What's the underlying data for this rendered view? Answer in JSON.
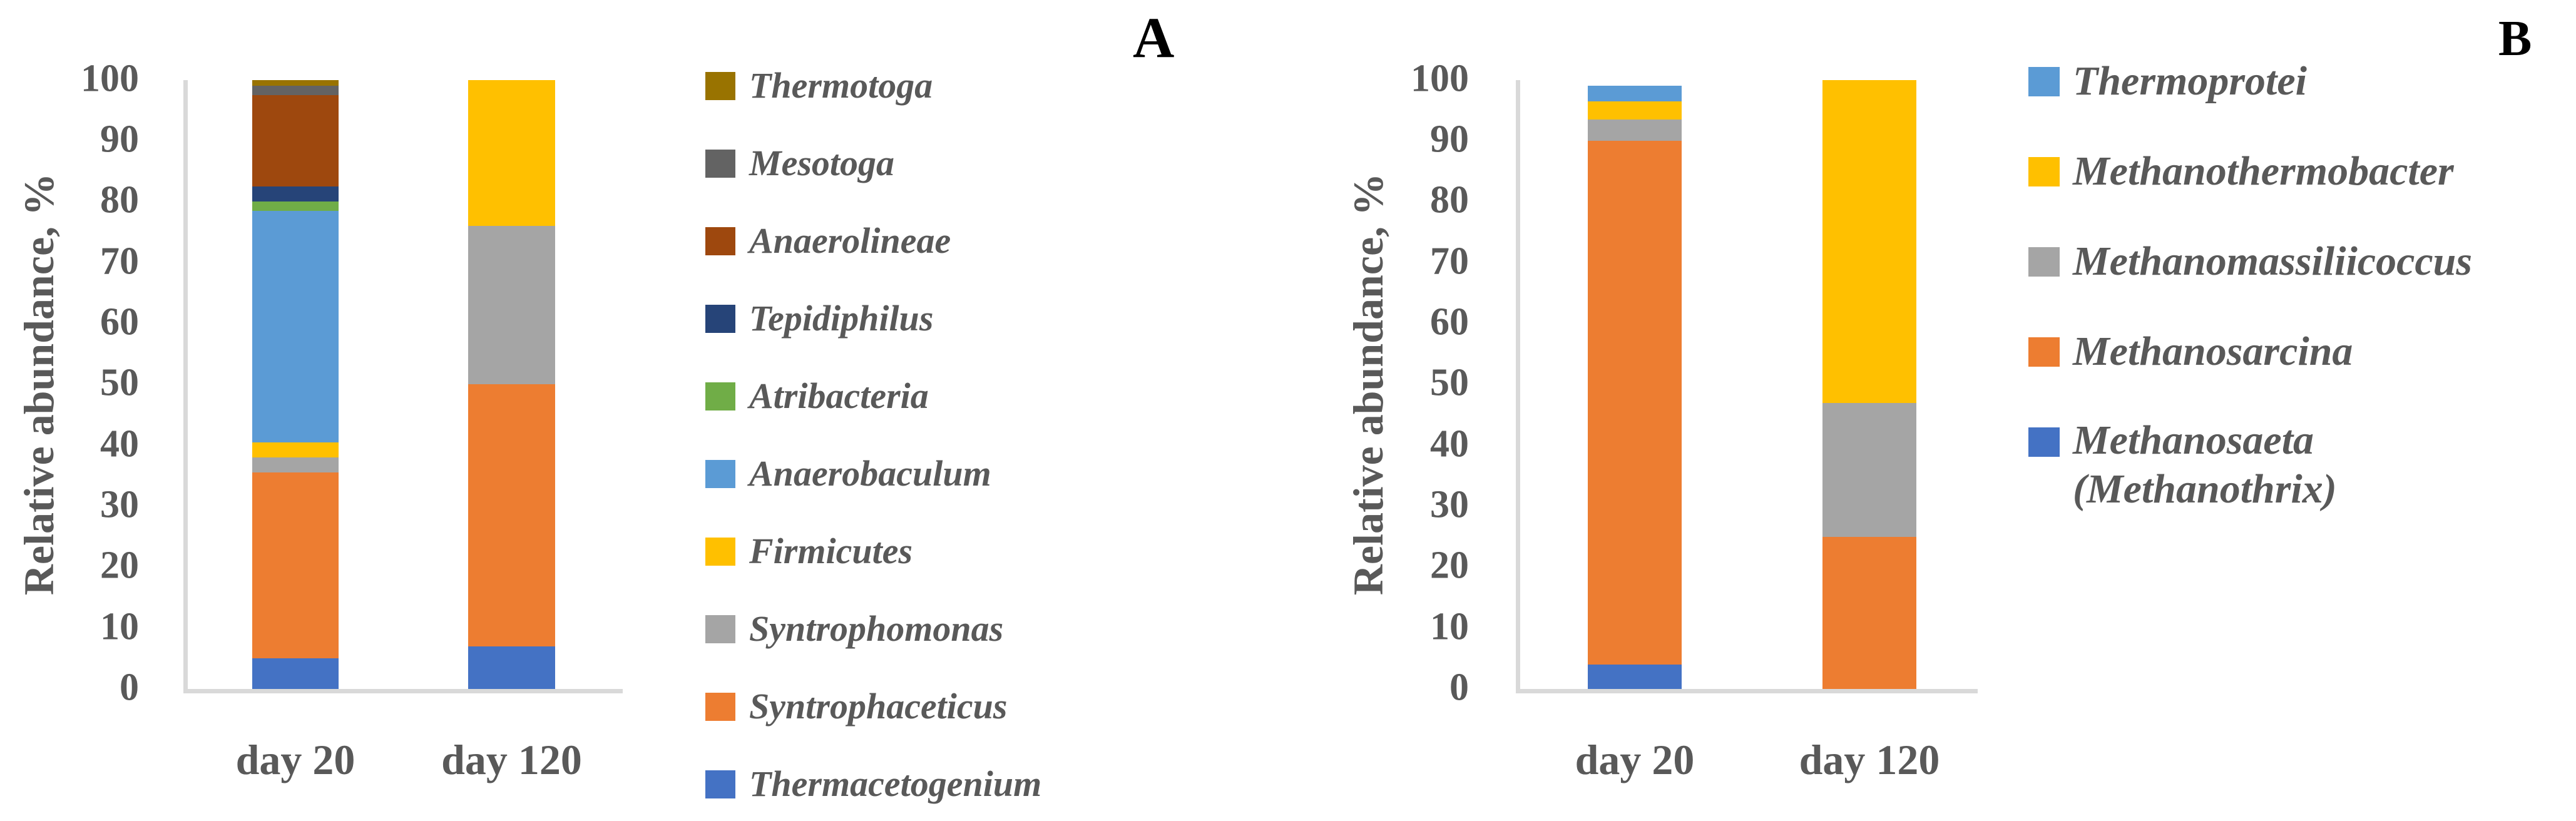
{
  "figure": {
    "background": "#FFFFFF",
    "text_color": "#595959",
    "axis_line_color": "#D9D9D9",
    "panel_letter_color": "#000000"
  },
  "chart_data": [
    {
      "type": "bar",
      "stacked": true,
      "panel_label": "A",
      "title": "",
      "xlabel": "",
      "ylabel": "Relative abundance, %",
      "ylim": [
        0,
        100
      ],
      "y_ticks": [
        100,
        90,
        80,
        70,
        60,
        50,
        40,
        30,
        20,
        10,
        0
      ],
      "categories": [
        "day 20",
        "day 120"
      ],
      "grid": false,
      "legend_position": "right",
      "series": [
        {
          "name": "Thermacetogenium",
          "color": "#4472C4",
          "values": [
            5,
            7
          ]
        },
        {
          "name": "Syntrophaceticus",
          "color": "#ED7D31",
          "values": [
            30.5,
            43
          ]
        },
        {
          "name": "Syntrophomonas",
          "color": "#A5A5A5",
          "values": [
            2.5,
            26
          ]
        },
        {
          "name": "Firmicutes",
          "color": "#FFC000",
          "values": [
            2.5,
            24
          ]
        },
        {
          "name": "Anaerobaculum",
          "color": "#5B9BD5",
          "values": [
            38,
            0
          ]
        },
        {
          "name": "Atribacteria",
          "color": "#70AD47",
          "values": [
            1.5,
            0
          ]
        },
        {
          "name": "Tepidiphilus",
          "color": "#264478",
          "values": [
            2.5,
            0
          ]
        },
        {
          "name": "Anaerolineae",
          "color": "#9E480E",
          "values": [
            15,
            0
          ]
        },
        {
          "name": "Mesotoga",
          "color": "#636363",
          "values": [
            1.5,
            0
          ]
        },
        {
          "name": "Thermotoga",
          "color": "#997300",
          "values": [
            1,
            0
          ]
        }
      ],
      "legend": [
        {
          "label": "Thermotoga",
          "color": "#997300"
        },
        {
          "label": "Mesotoga",
          "color": "#636363"
        },
        {
          "label": "Anaerolineae",
          "color": "#9E480E"
        },
        {
          "label": "Tepidiphilus",
          "color": "#264478"
        },
        {
          "label": "Atribacteria",
          "color": "#70AD47"
        },
        {
          "label": "Anaerobaculum",
          "color": "#5B9BD5"
        },
        {
          "label": "Firmicutes",
          "color": "#FFC000"
        },
        {
          "label": "Syntrophomonas",
          "color": "#A5A5A5"
        },
        {
          "label": "Syntrophaceticus",
          "color": "#ED7D31"
        },
        {
          "label": "Thermacetogenium",
          "color": "#4472C4"
        }
      ]
    },
    {
      "type": "bar",
      "stacked": true,
      "panel_label": "B",
      "title": "",
      "xlabel": "",
      "ylabel": "Relative abundance, %",
      "ylim": [
        0,
        100
      ],
      "y_ticks": [
        100,
        90,
        80,
        70,
        60,
        50,
        40,
        30,
        20,
        10,
        0
      ],
      "categories": [
        "day 20",
        "day 120"
      ],
      "grid": false,
      "legend_position": "right",
      "series": [
        {
          "name": "Methanosaeta (Methanothrix)",
          "color": "#4472C4",
          "values": [
            4,
            0
          ]
        },
        {
          "name": "Methanosarcina",
          "color": "#ED7D31",
          "values": [
            86,
            25
          ]
        },
        {
          "name": "Methanomassiliicoccus",
          "color": "#A5A5A5",
          "values": [
            3.5,
            22
          ]
        },
        {
          "name": "Methanothermobacter",
          "color": "#FFC000",
          "values": [
            3,
            53
          ]
        },
        {
          "name": "Thermoprotei",
          "color": "#5B9BD5",
          "values": [
            2.5,
            0
          ]
        }
      ],
      "legend": [
        {
          "label": "Thermoprotei",
          "color": "#5B9BD5"
        },
        {
          "label": "Methanothermobacter",
          "color": "#FFC000"
        },
        {
          "label": "Methanomassiliicoccus",
          "color": "#A5A5A5"
        },
        {
          "label": "Methanosarcina",
          "color": "#ED7D31"
        },
        {
          "label": "Methanosaeta",
          "label2": "(Methanothrix)",
          "color": "#4472C4"
        }
      ]
    }
  ]
}
